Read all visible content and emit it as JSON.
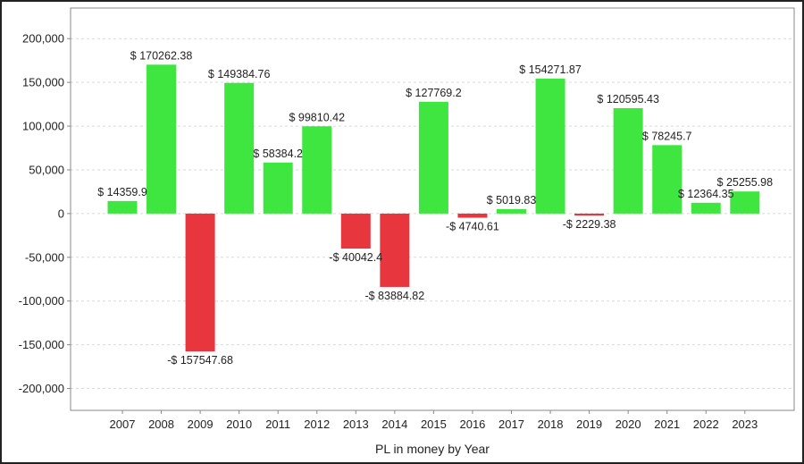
{
  "chart_data": {
    "type": "bar",
    "title": "",
    "xlabel": "PL in money by Year",
    "ylabel": "",
    "categories": [
      "2007",
      "2008",
      "2009",
      "2010",
      "2011",
      "2012",
      "2013",
      "2014",
      "2015",
      "2016",
      "2017",
      "2018",
      "2019",
      "2020",
      "2021",
      "2022",
      "2023"
    ],
    "values": [
      14359.9,
      170262.38,
      -157547.68,
      149384.76,
      58384.2,
      99810.42,
      -40042.4,
      -83884.82,
      127769.2,
      -4740.61,
      5019.83,
      154271.87,
      -2229.38,
      120595.43,
      78245.7,
      12364.35,
      25255.98
    ],
    "data_labels": [
      "$ 14359.9",
      "$ 170262.38",
      "-$ 157547.68",
      "$ 149384.76",
      "$ 58384.2",
      "$ 99810.42",
      "-$ 40042.4",
      "-$ 83884.82",
      "$ 127769.2",
      "-$ 4740.61",
      "$ 5019.83",
      "$ 154271.87",
      "-$ 2229.38",
      "$ 120595.43",
      "$ 78245.7",
      "$ 12364.35",
      "$ 25255.98"
    ],
    "yticks": [
      -200000,
      -150000,
      -100000,
      -50000,
      0,
      50000,
      100000,
      150000,
      200000
    ],
    "ytick_labels": [
      "-200,000",
      "-150,000",
      "-100,000",
      "-50,000",
      "0",
      "50,000",
      "100,000",
      "150,000",
      "200,000"
    ],
    "ylim": [
      -225000,
      235000
    ],
    "grid": true,
    "colors": {
      "positive": "#3fe63f",
      "negative": "#e8363f",
      "grid": "#d9d9d9",
      "axis": "#888888"
    }
  }
}
